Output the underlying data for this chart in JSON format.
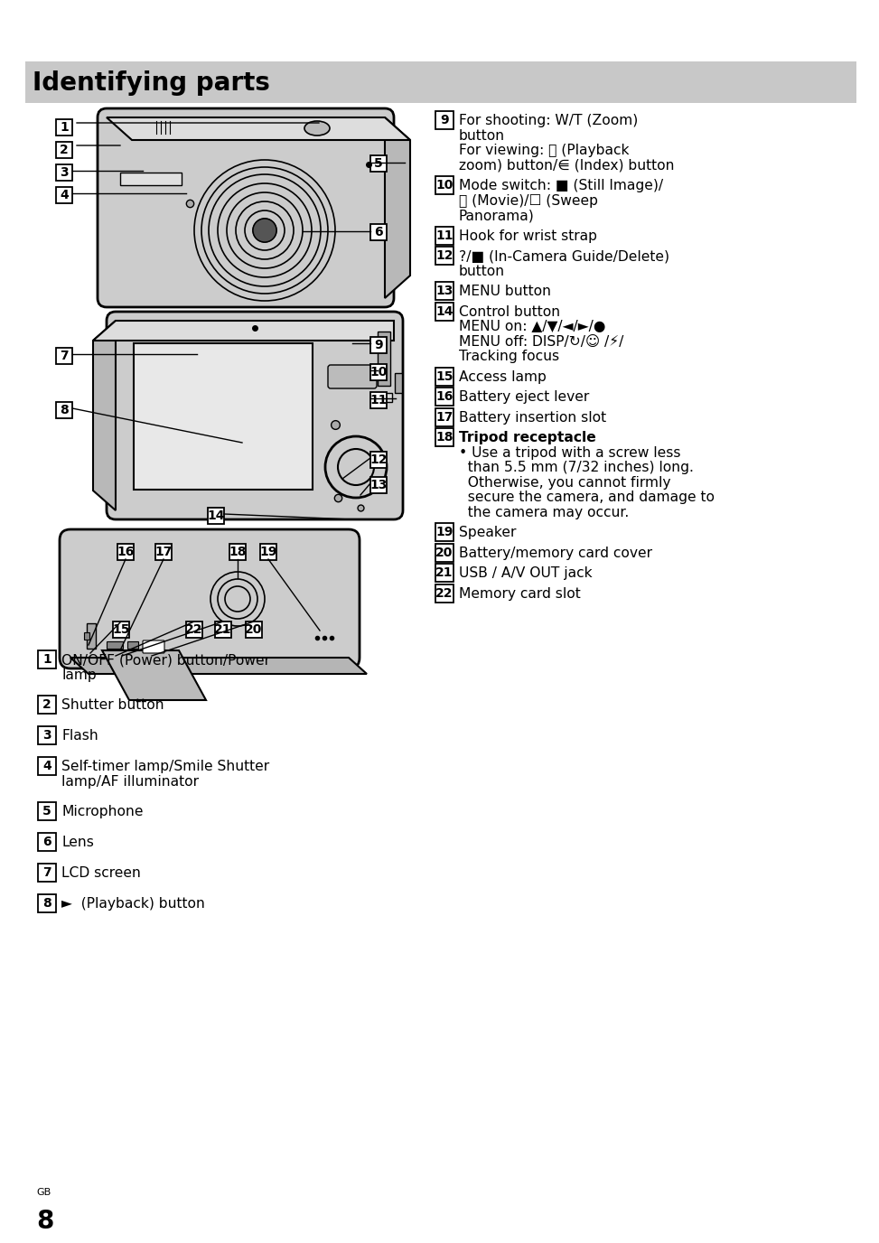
{
  "title": "Identifying parts",
  "title_bg_color": "#c8c8c8",
  "page_bg_color": "#ffffff",
  "page_number": "8",
  "page_label": "GB",
  "title_fontsize": 20,
  "body_fontsize": 11.2,
  "right_items": [
    [
      "9",
      "For shooting: W/T (Zoom)\nbutton\nFor viewing: Ⓠ (Playback\nzoom) button/⋹ (Index) button",
      4
    ],
    [
      "10",
      "Mode switch: ■ (Still Image)/\n▦ (Movie)/☐ (Sweep\nPanorama)",
      3
    ],
    [
      "11",
      "Hook for wrist strap",
      1
    ],
    [
      "12",
      "?/■ (In-Camera Guide/Delete)\nbutton",
      2
    ],
    [
      "13",
      "MENU button",
      1
    ],
    [
      "14",
      "Control button\nMENU on: ▲/▼/◄/►/●\nMENU off: DISP/↻/☺ /⚡/\nTracking focus",
      4
    ],
    [
      "15",
      "Access lamp",
      1
    ],
    [
      "16",
      "Battery eject lever",
      1
    ],
    [
      "17",
      "Battery insertion slot",
      1
    ],
    [
      "18",
      "Tripod receptacle\n• Use a tripod with a screw less\n  than 5.5 mm (7/32 inches) long.\n  Otherwise, you cannot firmly\n  secure the camera, and damage to\n  the camera may occur.",
      6
    ],
    [
      "19",
      "Speaker",
      1
    ],
    [
      "20",
      "Battery/memory card cover",
      1
    ],
    [
      "21",
      "USB / A/V OUT jack",
      1
    ],
    [
      "22",
      "Memory card slot",
      1
    ]
  ],
  "left_items": [
    [
      "1",
      "ON/OFF (Power) button/Power\nlamp",
      2
    ],
    [
      "2",
      "Shutter button",
      1
    ],
    [
      "3",
      "Flash",
      1
    ],
    [
      "4",
      "Self-timer lamp/Smile Shutter\nlamp/AF illuminator",
      2
    ],
    [
      "5",
      "Microphone",
      1
    ],
    [
      "6",
      "Lens",
      1
    ],
    [
      "7",
      "LCD screen",
      1
    ],
    [
      "8",
      "►  (Playback) button",
      1
    ]
  ]
}
